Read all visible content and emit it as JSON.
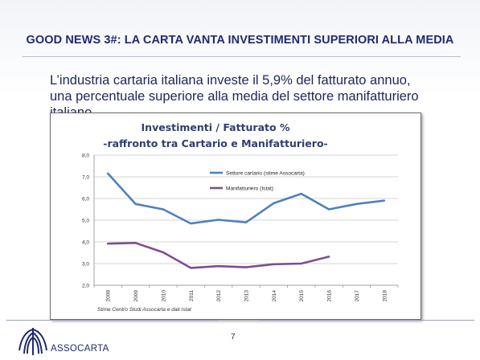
{
  "slide": {
    "title": "GOOD NEWS 3#: LA CARTA VANTA INVESTIMENTI SUPERIORI ALLA MEDIA",
    "intro_line1": "L’industria cartaria italiana investe il 5,9% del fatturato annuo,",
    "intro_line2": "una percentuale superiore alla media del settore manifatturiero",
    "intro_line3": "italiano",
    "page_number": "7",
    "logo_text": "ASSOCARTA"
  },
  "chart_data": {
    "type": "line",
    "title_line1": "Investimenti / Fatturato %",
    "title_line2": "-raffronto tra Cartario e Manifatturiero-",
    "source": "Stime Centro Studi Assocarta e dati Istat",
    "x": [
      "2008",
      "2009",
      "2010",
      "2011",
      "2012",
      "2013",
      "2014",
      "2015",
      "2016",
      "2017",
      "2018"
    ],
    "y_ticks": [
      "8,0",
      "7,0",
      "6,0",
      "5,0",
      "4,0",
      "3,0",
      "2,0"
    ],
    "ylim": [
      2,
      8
    ],
    "grid": true,
    "legend_position": "top-right",
    "series": [
      {
        "name": "Settore cartario (stime Assocarta)",
        "color": "#4f81bd",
        "values": [
          7.15,
          5.75,
          5.5,
          4.85,
          5.02,
          4.9,
          5.78,
          6.22,
          5.5,
          5.75,
          5.9
        ]
      },
      {
        "name": "Manifatturiero (Istat)",
        "color": "#7d4f8e",
        "values": [
          3.92,
          3.95,
          3.52,
          2.8,
          2.88,
          2.83,
          2.97,
          3.0,
          3.32,
          null,
          null
        ]
      }
    ]
  }
}
